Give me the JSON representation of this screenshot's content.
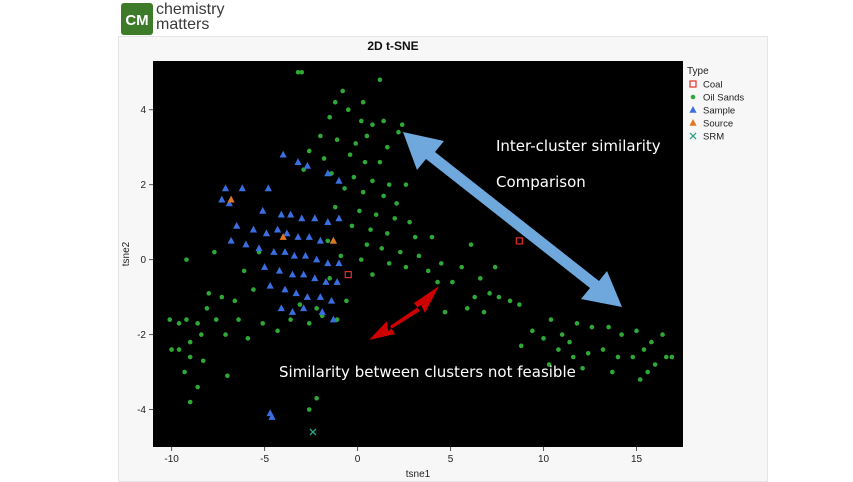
{
  "logo": {
    "line1": "chemistry",
    "line2": "matters",
    "mark_text": "CM"
  },
  "colors": {
    "plot_bg": "#000000",
    "coal": "#e0302a",
    "oil_sands": "#2ea836",
    "sample": "#3b6ee0",
    "source": "#e07820",
    "srm": "#2aa58a",
    "arrow_blue": "#6fa8dc",
    "arrow_red": "#cc0000"
  },
  "chart_data": {
    "type": "scatter",
    "title": "2D t-SNE",
    "xlabel": "tsne1",
    "ylabel": "tsne2",
    "xlim": [
      -11,
      17.5
    ],
    "ylim": [
      -5,
      5.3
    ],
    "xticks": [
      -10,
      -5,
      0,
      5,
      10,
      15
    ],
    "yticks": [
      -4,
      -2,
      0,
      2,
      4
    ],
    "legend": {
      "title": "Type",
      "position": "right",
      "entries": [
        {
          "name": "Coal",
          "marker": "square",
          "color": "#e0302a"
        },
        {
          "name": "Oil Sands",
          "marker": "circle",
          "color": "#2ea836"
        },
        {
          "name": "Sample",
          "marker": "triangle",
          "color": "#3b6ee0"
        },
        {
          "name": "Source",
          "marker": "triangle",
          "color": "#e07820"
        },
        {
          "name": "SRM",
          "marker": "x",
          "color": "#2aa58a"
        }
      ]
    },
    "series": [
      {
        "name": "Coal",
        "marker": "square",
        "points": [
          [
            8.7,
            0.5
          ],
          [
            -0.5,
            -0.4
          ]
        ]
      },
      {
        "name": "Oil Sands",
        "marker": "circle",
        "points": [
          [
            -3.2,
            5.0
          ],
          [
            -3.0,
            5.0
          ],
          [
            1.2,
            4.8
          ],
          [
            -0.8,
            4.5
          ],
          [
            -1.2,
            4.2
          ],
          [
            -0.5,
            4.0
          ],
          [
            0.3,
            4.2
          ],
          [
            -1.5,
            3.8
          ],
          [
            0.2,
            3.7
          ],
          [
            0.8,
            3.6
          ],
          [
            1.4,
            3.7
          ],
          [
            2.4,
            3.6
          ],
          [
            2.2,
            3.4
          ],
          [
            -2.0,
            3.3
          ],
          [
            -1.1,
            3.2
          ],
          [
            0.5,
            3.3
          ],
          [
            -0.1,
            3.1
          ],
          [
            1.6,
            3.0
          ],
          [
            -2.6,
            2.9
          ],
          [
            -1.8,
            2.7
          ],
          [
            -0.4,
            2.8
          ],
          [
            0.4,
            2.6
          ],
          [
            1.2,
            2.6
          ],
          [
            -2.9,
            2.4
          ],
          [
            -1.4,
            2.3
          ],
          [
            -0.2,
            2.2
          ],
          [
            0.8,
            2.1
          ],
          [
            1.7,
            2.0
          ],
          [
            2.6,
            2.0
          ],
          [
            -0.7,
            1.9
          ],
          [
            0.3,
            1.8
          ],
          [
            1.4,
            1.7
          ],
          [
            2.1,
            1.5
          ],
          [
            -1.2,
            1.4
          ],
          [
            0.1,
            1.3
          ],
          [
            1.0,
            1.2
          ],
          [
            2.0,
            1.1
          ],
          [
            2.8,
            1.0
          ],
          [
            -0.3,
            0.9
          ],
          [
            0.7,
            0.8
          ],
          [
            1.6,
            0.7
          ],
          [
            3.1,
            0.6
          ],
          [
            4.0,
            0.6
          ],
          [
            -1.6,
            0.5
          ],
          [
            0.5,
            0.4
          ],
          [
            1.3,
            0.3
          ],
          [
            2.3,
            0.2
          ],
          [
            3.3,
            0.1
          ],
          [
            6.1,
            0.4
          ],
          [
            -0.9,
            0.1
          ],
          [
            0.2,
            0.0
          ],
          [
            1.7,
            -0.1
          ],
          [
            2.6,
            -0.2
          ],
          [
            4.5,
            -0.1
          ],
          [
            3.8,
            -0.3
          ],
          [
            5.6,
            -0.2
          ],
          [
            7.4,
            -0.2
          ],
          [
            -1.5,
            -0.5
          ],
          [
            0.8,
            -0.4
          ],
          [
            4.3,
            -0.6
          ],
          [
            5.1,
            -0.6
          ],
          [
            6.6,
            -0.5
          ],
          [
            7.1,
            -0.9
          ],
          [
            7.6,
            -1.0
          ],
          [
            8.2,
            -1.1
          ],
          [
            8.7,
            -1.2
          ],
          [
            5.9,
            -1.3
          ],
          [
            6.8,
            -1.4
          ],
          [
            -5.3,
            0.2
          ],
          [
            -6.1,
            -0.3
          ],
          [
            -5.6,
            -0.8
          ],
          [
            -6.6,
            -1.1
          ],
          [
            -7.3,
            -1.0
          ],
          [
            -8.1,
            -1.3
          ],
          [
            -7.6,
            -1.6
          ],
          [
            -8.6,
            -1.7
          ],
          [
            -9.2,
            -1.6
          ],
          [
            -9.6,
            -1.7
          ],
          [
            -10.1,
            -1.6
          ],
          [
            -9.0,
            -2.2
          ],
          [
            -8.4,
            -2.0
          ],
          [
            -7.1,
            -2.0
          ],
          [
            -6.4,
            -1.6
          ],
          [
            -5.9,
            -2.1
          ],
          [
            -5.1,
            -1.7
          ],
          [
            -4.3,
            -1.9
          ],
          [
            -3.6,
            -1.6
          ],
          [
            -2.6,
            -1.7
          ],
          [
            -1.9,
            -1.5
          ],
          [
            -1.1,
            -1.6
          ],
          [
            -0.6,
            -1.1
          ],
          [
            -2.2,
            -1.3
          ],
          [
            -3.1,
            -1.2
          ],
          [
            -9.0,
            -2.6
          ],
          [
            -9.6,
            -2.4
          ],
          [
            -8.3,
            -2.7
          ],
          [
            -9.3,
            -3.0
          ],
          [
            -8.6,
            -3.4
          ],
          [
            -9.0,
            -3.8
          ],
          [
            -10.0,
            -2.4
          ],
          [
            -7.0,
            -3.1
          ],
          [
            -9.2,
            0.0
          ],
          [
            -7.7,
            0.2
          ],
          [
            -2.2,
            -3.7
          ],
          [
            -2.6,
            -4.0
          ],
          [
            -8.0,
            -0.9
          ],
          [
            10.4,
            -1.6
          ],
          [
            11.0,
            -2.0
          ],
          [
            11.8,
            -1.7
          ],
          [
            12.6,
            -1.8
          ],
          [
            13.5,
            -1.8
          ],
          [
            14.2,
            -2.0
          ],
          [
            15.0,
            -1.9
          ],
          [
            15.8,
            -2.2
          ],
          [
            16.4,
            -2.0
          ],
          [
            16.6,
            -2.6
          ],
          [
            16.0,
            -2.8
          ],
          [
            15.6,
            -3.0
          ],
          [
            14.8,
            -2.6
          ],
          [
            14.0,
            -2.6
          ],
          [
            13.2,
            -2.4
          ],
          [
            12.4,
            -2.5
          ],
          [
            11.6,
            -2.6
          ],
          [
            10.8,
            -2.4
          ],
          [
            10.0,
            -2.1
          ],
          [
            11.4,
            -2.2
          ],
          [
            12.1,
            -2.9
          ],
          [
            13.7,
            -3.0
          ],
          [
            15.2,
            -3.2
          ],
          [
            9.4,
            -1.9
          ],
          [
            8.8,
            -2.3
          ],
          [
            10.3,
            -2.8
          ],
          [
            16.9,
            -2.6
          ],
          [
            15.4,
            -2.4
          ],
          [
            4.7,
            -1.4
          ],
          [
            6.3,
            -1.0
          ]
        ]
      },
      {
        "name": "Sample",
        "marker": "triangle",
        "points": [
          [
            -4.0,
            2.8
          ],
          [
            -3.2,
            2.6
          ],
          [
            -2.7,
            2.5
          ],
          [
            -1.6,
            2.3
          ],
          [
            -7.1,
            1.9
          ],
          [
            -6.2,
            1.9
          ],
          [
            -4.8,
            1.9
          ],
          [
            -7.3,
            1.6
          ],
          [
            -6.9,
            1.5
          ],
          [
            -5.1,
            1.3
          ],
          [
            -4.1,
            1.2
          ],
          [
            -3.6,
            1.2
          ],
          [
            -3.0,
            1.1
          ],
          [
            -2.3,
            1.1
          ],
          [
            -1.6,
            1.0
          ],
          [
            -1.0,
            1.1
          ],
          [
            -6.5,
            0.9
          ],
          [
            -5.6,
            0.8
          ],
          [
            -4.9,
            0.7
          ],
          [
            -4.3,
            0.8
          ],
          [
            -3.8,
            0.7
          ],
          [
            -3.2,
            0.6
          ],
          [
            -2.6,
            0.6
          ],
          [
            -2.0,
            0.5
          ],
          [
            -1.3,
            0.5
          ],
          [
            -6.8,
            0.5
          ],
          [
            -6.0,
            0.4
          ],
          [
            -5.3,
            0.3
          ],
          [
            -4.5,
            0.2
          ],
          [
            -3.9,
            0.2
          ],
          [
            -3.4,
            0.1
          ],
          [
            -2.8,
            0.1
          ],
          [
            -2.2,
            0.0
          ],
          [
            -1.6,
            -0.1
          ],
          [
            -1.0,
            -0.1
          ],
          [
            -5.0,
            -0.2
          ],
          [
            -4.2,
            -0.3
          ],
          [
            -3.5,
            -0.4
          ],
          [
            -2.9,
            -0.4
          ],
          [
            -2.3,
            -0.5
          ],
          [
            -1.7,
            -0.6
          ],
          [
            -1.1,
            -0.6
          ],
          [
            -4.7,
            -0.7
          ],
          [
            -3.9,
            -0.8
          ],
          [
            -3.3,
            -0.9
          ],
          [
            -2.7,
            -1.0
          ],
          [
            -2.0,
            -1.0
          ],
          [
            -1.4,
            -1.1
          ],
          [
            -4.1,
            -1.3
          ],
          [
            -3.5,
            -1.4
          ],
          [
            -2.9,
            -1.3
          ],
          [
            -1.9,
            -1.4
          ],
          [
            -1.3,
            -1.6
          ],
          [
            -1.0,
            2.1
          ],
          [
            -4.7,
            -4.1
          ],
          [
            -4.6,
            -4.2
          ]
        ]
      },
      {
        "name": "Source",
        "marker": "triangle",
        "points": [
          [
            -6.8,
            1.6
          ],
          [
            -4.0,
            0.6
          ],
          [
            -1.3,
            0.5
          ]
        ]
      },
      {
        "name": "SRM",
        "marker": "x",
        "points": [
          [
            -2.4,
            -4.6
          ]
        ]
      }
    ],
    "annotations": [
      {
        "text": "Inter-cluster similarity"
      },
      {
        "text": "Comparison"
      },
      {
        "text": "Similarity between clusters not feasible"
      }
    ]
  }
}
